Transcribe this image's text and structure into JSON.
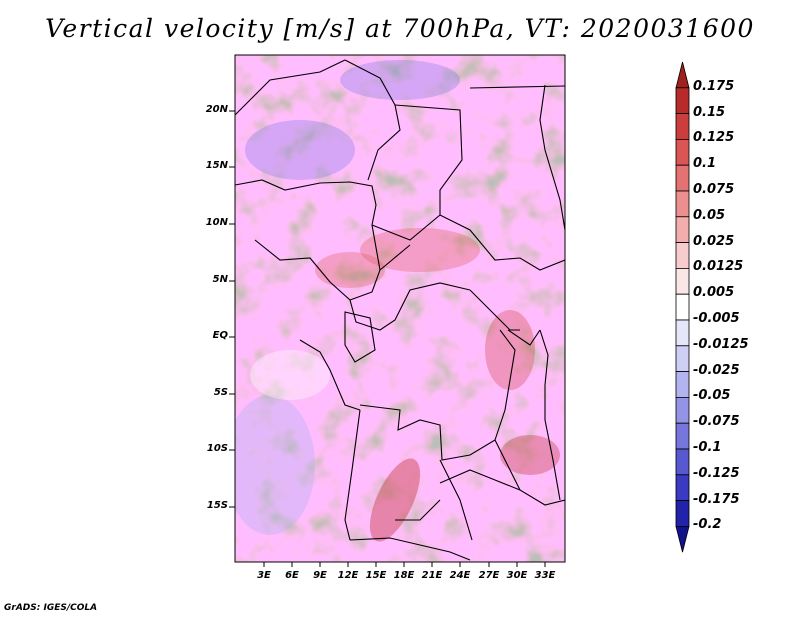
{
  "title": "Vertical velocity [m/s] at 700hPa, VT: 2020031600",
  "map": {
    "lat_labels": [
      "20N",
      "15N",
      "10N",
      "5N",
      "EQ",
      "5S",
      "10S",
      "15S"
    ],
    "lon_labels": [
      "3E",
      "6E",
      "9E",
      "12E",
      "15E",
      "18E",
      "21E",
      "24E",
      "27E",
      "30E",
      "33E"
    ],
    "field": "vertical velocity",
    "level": "700hPa",
    "valid_time": "2020031600"
  },
  "colorbar": {
    "labels": [
      "0.175",
      "0.15",
      "0.125",
      "0.1",
      "0.075",
      "0.05",
      "0.025",
      "0.0125",
      "0.005",
      "-0.005",
      "-0.0125",
      "-0.025",
      "-0.05",
      "-0.075",
      "-0.1",
      "-0.125",
      "-0.175",
      "-0.2"
    ],
    "colors": [
      "#a01f1f",
      "#b72b2b",
      "#cc3d3d",
      "#dc5555",
      "#e57272",
      "#ec8f8f",
      "#f2adad",
      "#f7cccc",
      "#fbe6e6",
      "#ffffff",
      "#e6e6fb",
      "#cfcff6",
      "#b3b3ef",
      "#9494e6",
      "#7676dc",
      "#5858d0",
      "#3a3ac2",
      "#2222aa",
      "#12128c"
    ]
  },
  "footer": "GrADS: IGES/COLA"
}
